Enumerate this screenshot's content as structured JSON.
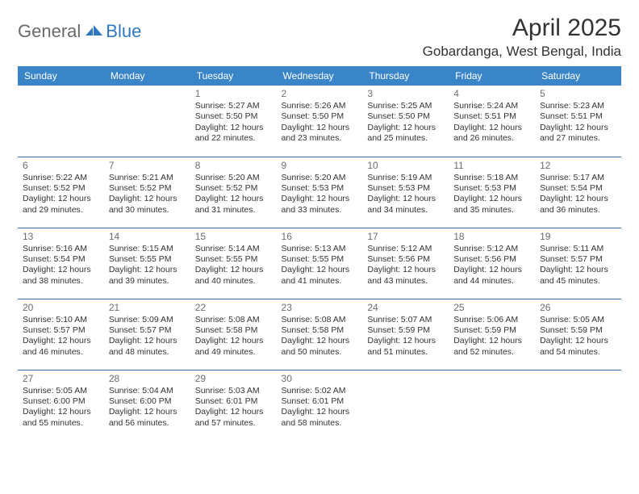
{
  "logo": {
    "general": "General",
    "blue": "Blue"
  },
  "title": "April 2025",
  "location": "Gobardanga, West Bengal, India",
  "colors": {
    "header_bg": "#3a84c8",
    "header_text": "#ffffff",
    "row_border": "#2f6ea8",
    "daynum": "#6d6d6d",
    "body_text": "#333333",
    "logo_gray": "#6a6a6a",
    "logo_blue": "#2f78bf",
    "page_bg": "#ffffff"
  },
  "weekdays": [
    "Sunday",
    "Monday",
    "Tuesday",
    "Wednesday",
    "Thursday",
    "Friday",
    "Saturday"
  ],
  "first_weekday_index": 2,
  "days": [
    {
      "n": 1,
      "sunrise": "5:27 AM",
      "sunset": "5:50 PM",
      "dl": "12 hours and 22 minutes."
    },
    {
      "n": 2,
      "sunrise": "5:26 AM",
      "sunset": "5:50 PM",
      "dl": "12 hours and 23 minutes."
    },
    {
      "n": 3,
      "sunrise": "5:25 AM",
      "sunset": "5:50 PM",
      "dl": "12 hours and 25 minutes."
    },
    {
      "n": 4,
      "sunrise": "5:24 AM",
      "sunset": "5:51 PM",
      "dl": "12 hours and 26 minutes."
    },
    {
      "n": 5,
      "sunrise": "5:23 AM",
      "sunset": "5:51 PM",
      "dl": "12 hours and 27 minutes."
    },
    {
      "n": 6,
      "sunrise": "5:22 AM",
      "sunset": "5:52 PM",
      "dl": "12 hours and 29 minutes."
    },
    {
      "n": 7,
      "sunrise": "5:21 AM",
      "sunset": "5:52 PM",
      "dl": "12 hours and 30 minutes."
    },
    {
      "n": 8,
      "sunrise": "5:20 AM",
      "sunset": "5:52 PM",
      "dl": "12 hours and 31 minutes."
    },
    {
      "n": 9,
      "sunrise": "5:20 AM",
      "sunset": "5:53 PM",
      "dl": "12 hours and 33 minutes."
    },
    {
      "n": 10,
      "sunrise": "5:19 AM",
      "sunset": "5:53 PM",
      "dl": "12 hours and 34 minutes."
    },
    {
      "n": 11,
      "sunrise": "5:18 AM",
      "sunset": "5:53 PM",
      "dl": "12 hours and 35 minutes."
    },
    {
      "n": 12,
      "sunrise": "5:17 AM",
      "sunset": "5:54 PM",
      "dl": "12 hours and 36 minutes."
    },
    {
      "n": 13,
      "sunrise": "5:16 AM",
      "sunset": "5:54 PM",
      "dl": "12 hours and 38 minutes."
    },
    {
      "n": 14,
      "sunrise": "5:15 AM",
      "sunset": "5:55 PM",
      "dl": "12 hours and 39 minutes."
    },
    {
      "n": 15,
      "sunrise": "5:14 AM",
      "sunset": "5:55 PM",
      "dl": "12 hours and 40 minutes."
    },
    {
      "n": 16,
      "sunrise": "5:13 AM",
      "sunset": "5:55 PM",
      "dl": "12 hours and 41 minutes."
    },
    {
      "n": 17,
      "sunrise": "5:12 AM",
      "sunset": "5:56 PM",
      "dl": "12 hours and 43 minutes."
    },
    {
      "n": 18,
      "sunrise": "5:12 AM",
      "sunset": "5:56 PM",
      "dl": "12 hours and 44 minutes."
    },
    {
      "n": 19,
      "sunrise": "5:11 AM",
      "sunset": "5:57 PM",
      "dl": "12 hours and 45 minutes."
    },
    {
      "n": 20,
      "sunrise": "5:10 AM",
      "sunset": "5:57 PM",
      "dl": "12 hours and 46 minutes."
    },
    {
      "n": 21,
      "sunrise": "5:09 AM",
      "sunset": "5:57 PM",
      "dl": "12 hours and 48 minutes."
    },
    {
      "n": 22,
      "sunrise": "5:08 AM",
      "sunset": "5:58 PM",
      "dl": "12 hours and 49 minutes."
    },
    {
      "n": 23,
      "sunrise": "5:08 AM",
      "sunset": "5:58 PM",
      "dl": "12 hours and 50 minutes."
    },
    {
      "n": 24,
      "sunrise": "5:07 AM",
      "sunset": "5:59 PM",
      "dl": "12 hours and 51 minutes."
    },
    {
      "n": 25,
      "sunrise": "5:06 AM",
      "sunset": "5:59 PM",
      "dl": "12 hours and 52 minutes."
    },
    {
      "n": 26,
      "sunrise": "5:05 AM",
      "sunset": "5:59 PM",
      "dl": "12 hours and 54 minutes."
    },
    {
      "n": 27,
      "sunrise": "5:05 AM",
      "sunset": "6:00 PM",
      "dl": "12 hours and 55 minutes."
    },
    {
      "n": 28,
      "sunrise": "5:04 AM",
      "sunset": "6:00 PM",
      "dl": "12 hours and 56 minutes."
    },
    {
      "n": 29,
      "sunrise": "5:03 AM",
      "sunset": "6:01 PM",
      "dl": "12 hours and 57 minutes."
    },
    {
      "n": 30,
      "sunrise": "5:02 AM",
      "sunset": "6:01 PM",
      "dl": "12 hours and 58 minutes."
    }
  ],
  "labels": {
    "sunrise": "Sunrise:",
    "sunset": "Sunset:",
    "daylight": "Daylight:"
  }
}
